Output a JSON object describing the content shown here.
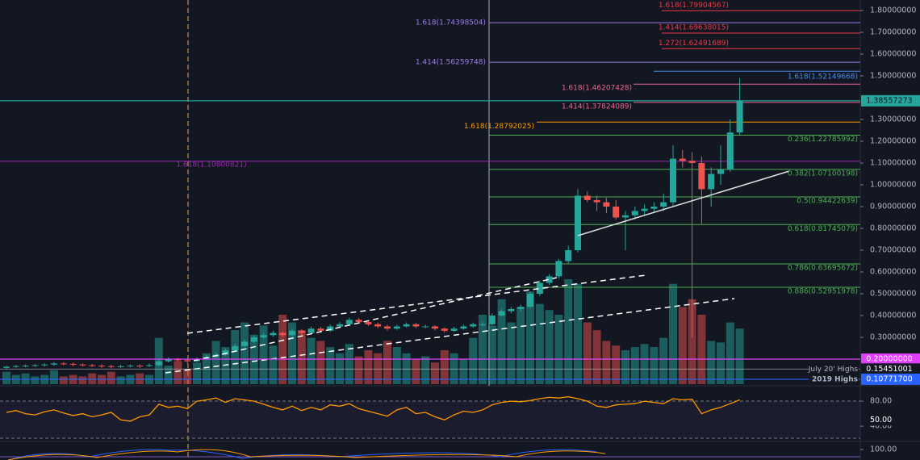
{
  "chart_data": {
    "type": "candlestick",
    "ylim": [
      0.08,
      1.85
    ],
    "yticks": [
      {
        "value": 0.3,
        "label": "0.30000000"
      },
      {
        "value": 0.4,
        "label": "0.40000000"
      },
      {
        "value": 0.5,
        "label": "0.50000000"
      },
      {
        "value": 0.6,
        "label": "0.60000000"
      },
      {
        "value": 0.7,
        "label": "0.70000000"
      },
      {
        "value": 0.8,
        "label": "0.80000000"
      },
      {
        "value": 0.9,
        "label": "0.90000000"
      },
      {
        "value": 1.0,
        "label": "1.00000000"
      },
      {
        "value": 1.1,
        "label": "1.10000000"
      },
      {
        "value": 1.2,
        "label": "1.20000000"
      },
      {
        "value": 1.3,
        "label": "1.30000000"
      },
      {
        "value": 1.5,
        "label": "1.50000000"
      },
      {
        "value": 1.6,
        "label": "1.60000000"
      },
      {
        "value": 1.7,
        "label": "1.70000000"
      },
      {
        "value": 1.8,
        "label": "1.80000000"
      }
    ],
    "up_color": "#26a69a",
    "down_color": "#ef5350",
    "ohlc": [
      [
        0.16,
        0.17,
        0.155,
        0.165
      ],
      [
        0.165,
        0.174,
        0.16,
        0.168
      ],
      [
        0.168,
        0.176,
        0.162,
        0.17
      ],
      [
        0.17,
        0.178,
        0.164,
        0.172
      ],
      [
        0.172,
        0.182,
        0.166,
        0.175
      ],
      [
        0.175,
        0.186,
        0.17,
        0.18
      ],
      [
        0.18,
        0.186,
        0.172,
        0.178
      ],
      [
        0.178,
        0.184,
        0.168,
        0.175
      ],
      [
        0.175,
        0.18,
        0.166,
        0.172
      ],
      [
        0.172,
        0.178,
        0.164,
        0.17
      ],
      [
        0.17,
        0.176,
        0.16,
        0.168
      ],
      [
        0.168,
        0.174,
        0.158,
        0.165
      ],
      [
        0.165,
        0.174,
        0.16,
        0.167
      ],
      [
        0.167,
        0.176,
        0.162,
        0.17
      ],
      [
        0.17,
        0.176,
        0.16,
        0.168
      ],
      [
        0.168,
        0.18,
        0.164,
        0.172
      ],
      [
        0.172,
        0.198,
        0.168,
        0.19
      ],
      [
        0.19,
        0.208,
        0.185,
        0.2
      ],
      [
        0.2,
        0.206,
        0.188,
        0.195
      ],
      [
        0.195,
        0.2,
        0.182,
        0.19
      ],
      [
        0.19,
        0.208,
        0.186,
        0.2
      ],
      [
        0.2,
        0.218,
        0.195,
        0.21
      ],
      [
        0.21,
        0.23,
        0.205,
        0.22
      ],
      [
        0.22,
        0.25,
        0.215,
        0.24
      ],
      [
        0.24,
        0.27,
        0.235,
        0.26
      ],
      [
        0.26,
        0.29,
        0.255,
        0.28
      ],
      [
        0.28,
        0.31,
        0.275,
        0.3
      ],
      [
        0.3,
        0.32,
        0.292,
        0.31
      ],
      [
        0.31,
        0.33,
        0.302,
        0.32
      ],
      [
        0.32,
        0.328,
        0.3,
        0.31
      ],
      [
        0.31,
        0.34,
        0.305,
        0.33
      ],
      [
        0.33,
        0.338,
        0.312,
        0.32
      ],
      [
        0.32,
        0.35,
        0.315,
        0.34
      ],
      [
        0.34,
        0.348,
        0.322,
        0.33
      ],
      [
        0.33,
        0.36,
        0.325,
        0.35
      ],
      [
        0.35,
        0.37,
        0.345,
        0.36
      ],
      [
        0.36,
        0.39,
        0.355,
        0.38
      ],
      [
        0.38,
        0.388,
        0.362,
        0.37
      ],
      [
        0.37,
        0.378,
        0.352,
        0.36
      ],
      [
        0.36,
        0.368,
        0.342,
        0.35
      ],
      [
        0.35,
        0.358,
        0.332,
        0.34
      ],
      [
        0.34,
        0.358,
        0.335,
        0.35
      ],
      [
        0.35,
        0.368,
        0.345,
        0.36
      ],
      [
        0.36,
        0.366,
        0.342,
        0.35
      ],
      [
        0.35,
        0.358,
        0.342,
        0.35
      ],
      [
        0.35,
        0.356,
        0.332,
        0.34
      ],
      [
        0.34,
        0.346,
        0.322,
        0.33
      ],
      [
        0.33,
        0.348,
        0.325,
        0.34
      ],
      [
        0.34,
        0.358,
        0.335,
        0.35
      ],
      [
        0.35,
        0.368,
        0.345,
        0.36
      ],
      [
        0.36,
        0.37,
        0.35,
        0.36
      ],
      [
        0.36,
        0.41,
        0.355,
        0.4
      ],
      [
        0.4,
        0.43,
        0.395,
        0.42
      ],
      [
        0.42,
        0.44,
        0.41,
        0.43
      ],
      [
        0.43,
        0.45,
        0.42,
        0.44
      ],
      [
        0.44,
        0.51,
        0.435,
        0.5
      ],
      [
        0.5,
        0.56,
        0.49,
        0.55
      ],
      [
        0.55,
        0.59,
        0.54,
        0.58
      ],
      [
        0.58,
        0.66,
        0.57,
        0.65
      ],
      [
        0.65,
        0.72,
        0.64,
        0.7
      ],
      [
        0.7,
        0.98,
        0.69,
        0.95
      ],
      [
        0.95,
        0.97,
        0.92,
        0.93
      ],
      [
        0.93,
        0.95,
        0.88,
        0.92
      ],
      [
        0.92,
        0.94,
        0.87,
        0.9
      ],
      [
        0.9,
        0.93,
        0.84,
        0.85
      ],
      [
        0.85,
        0.88,
        0.7,
        0.86
      ],
      [
        0.86,
        0.9,
        0.84,
        0.88
      ],
      [
        0.88,
        0.91,
        0.86,
        0.89
      ],
      [
        0.89,
        0.92,
        0.87,
        0.9
      ],
      [
        0.9,
        0.96,
        0.88,
        0.92
      ],
      [
        0.92,
        1.18,
        0.9,
        1.12
      ],
      [
        1.12,
        1.16,
        1.08,
        1.11
      ],
      [
        1.11,
        1.15,
        0.3,
        1.1
      ],
      [
        1.1,
        1.13,
        0.82,
        0.98
      ],
      [
        0.98,
        1.08,
        0.9,
        1.05
      ],
      [
        1.05,
        1.18,
        1.0,
        1.07
      ],
      [
        1.07,
        1.3,
        1.06,
        1.24
      ],
      [
        1.24,
        1.49,
        1.23,
        1.386
      ]
    ],
    "volume": [
      8,
      6,
      7,
      5,
      6,
      9,
      5,
      6,
      5,
      7,
      6,
      8,
      5,
      6,
      7,
      6,
      30,
      12,
      15,
      10,
      14,
      20,
      28,
      24,
      35,
      40,
      32,
      38,
      25,
      45,
      40,
      35,
      30,
      28,
      24,
      20,
      26,
      18,
      22,
      20,
      28,
      24,
      20,
      16,
      18,
      14,
      22,
      20,
      16,
      30,
      45,
      38,
      55,
      40,
      50,
      60,
      52,
      48,
      45,
      68,
      65,
      40,
      35,
      28,
      25,
      22,
      24,
      26,
      24,
      30,
      65,
      50,
      55,
      45,
      28,
      27,
      40,
      36
    ],
    "levels": [
      {
        "label": "1.618(1.79904567)",
        "value": 1.79904567,
        "color": "#f23645"
      },
      {
        "label": "1.618(1.74398504)",
        "value": 1.74398504,
        "color": "#9c7ce8"
      },
      {
        "label": "1.414(1.69638015)",
        "value": 1.69638015,
        "color": "#f23645"
      },
      {
        "label": "1.272(1.62491689)",
        "value": 1.62491689,
        "color": "#f23645"
      },
      {
        "label": "1.414(1.56259748)",
        "value": 1.56259748,
        "color": "#9c7ce8"
      },
      {
        "label": "1.618(1.52149668)",
        "value": 1.52149668,
        "color": "#4a8cf0"
      },
      {
        "label": "1.618(1.46207428)",
        "value": 1.46207428,
        "color": "#f06292"
      },
      {
        "label": "1.414(1.37824089)",
        "value": 1.37824089,
        "color": "#f06292"
      },
      {
        "label": "1.618(1.28792025)",
        "value": 1.28792025,
        "color": "#ff9800"
      },
      {
        "label": "0.236(1.22785992)",
        "value": 1.22785992,
        "color": "#4caf50"
      },
      {
        "label": "1.618(1.10800821)",
        "value": 1.10800821,
        "color": "#9c27b0"
      },
      {
        "label": "0.382(1.07100198)",
        "value": 1.07100198,
        "color": "#4caf50"
      },
      {
        "label": "0.5(0.94422639)",
        "value": 0.94422639,
        "color": "#4caf50"
      },
      {
        "label": "0.618(0.81745079)",
        "value": 0.81745079,
        "color": "#4caf50"
      },
      {
        "label": "0.786(0.63695672)",
        "value": 0.63695672,
        "color": "#4caf50"
      },
      {
        "label": "0.886(0.52951978)",
        "value": 0.52951978,
        "color": "#4caf50"
      }
    ],
    "tags": [
      {
        "value": 1.38557273,
        "label": "1.38557273",
        "color": "#26a69a"
      },
      {
        "value": 0.2,
        "label": "0.20000000",
        "color": "#e040fb"
      },
      {
        "name": "July 20' Highs",
        "value": 0.15451001,
        "label": "0.15451001",
        "color": "#d1d4dc"
      },
      {
        "name": "2019 Highs",
        "value": 0.107717,
        "label": "0.10771700",
        "color": "#2962ff"
      }
    ],
    "rsi": {
      "color": "#ff9800",
      "ylim": [
        16,
        102
      ],
      "yticks": [
        {
          "value": 80,
          "label": "80.00"
        },
        {
          "value": 40,
          "label": "40.00"
        }
      ],
      "marker": {
        "value": 50,
        "label": "50.00"
      },
      "values": [
        62,
        65,
        60,
        58,
        63,
        66,
        61,
        57,
        60,
        55,
        58,
        62,
        50,
        48,
        55,
        58,
        75,
        70,
        72,
        68,
        80,
        82,
        85,
        78,
        84,
        82,
        80,
        75,
        70,
        66,
        72,
        65,
        70,
        66,
        74,
        72,
        76,
        68,
        64,
        60,
        56,
        66,
        70,
        60,
        62,
        55,
        50,
        58,
        64,
        62,
        66,
        74,
        78,
        80,
        79,
        81,
        84,
        86,
        85,
        87,
        84,
        80,
        72,
        70,
        74,
        75,
        76,
        80,
        78,
        76,
        84,
        82,
        83,
        60,
        66,
        70,
        76,
        82
      ]
    },
    "lower_pane_tick": {
      "value": 100,
      "label": "100.00"
    }
  }
}
